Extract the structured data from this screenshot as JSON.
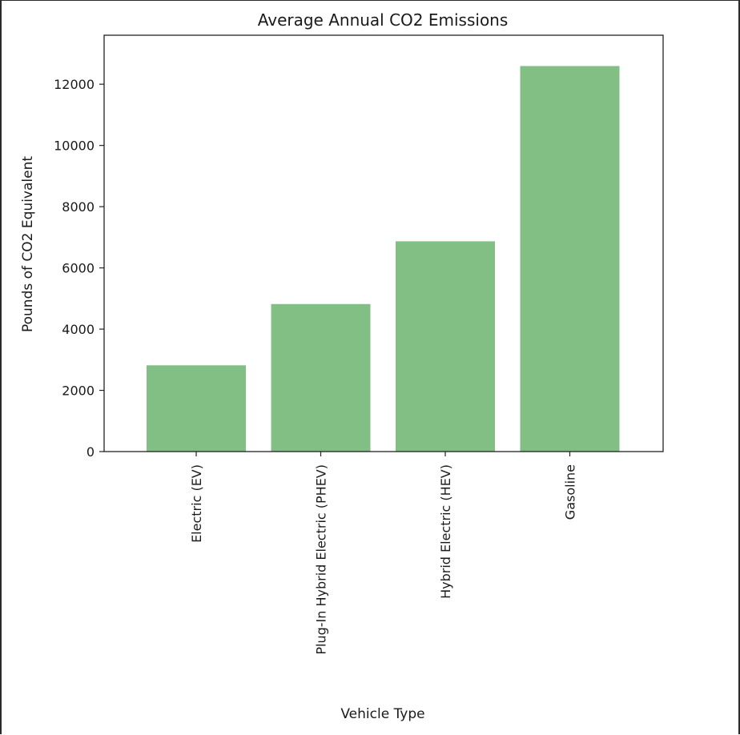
{
  "chart_data": {
    "type": "bar",
    "title": "Average Annual CO2 Emissions",
    "xlabel": "Vehicle Type",
    "ylabel": "Pounds of CO2 Equivalent",
    "categories": [
      "Electric (EV)",
      "Plug-In Hybrid Electric (PHEV)",
      "Hybrid Electric (HEV)",
      "Gasoline"
    ],
    "values": [
      2817,
      4819,
      6868,
      12594
    ],
    "yticks": [
      "0",
      "2000",
      "4000",
      "6000",
      "8000",
      "10000",
      "12000"
    ],
    "ylim": [
      0,
      13600
    ],
    "bar_color": "#81bf85",
    "grid": false,
    "legend": "none"
  }
}
